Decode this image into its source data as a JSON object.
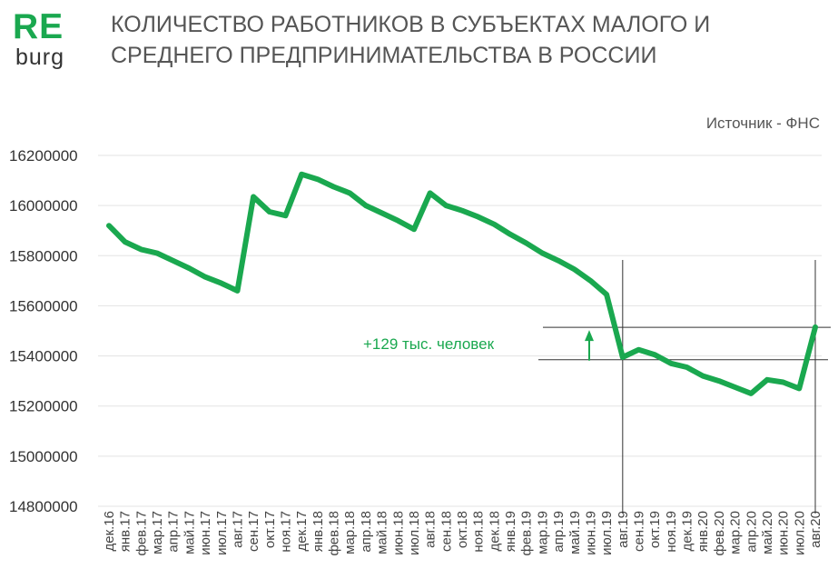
{
  "logo": {
    "line1": "RE",
    "line2": "burg"
  },
  "title": "КОЛИЧЕСТВО РАБОТНИКОВ В СУБЪЕКТАХ МАЛОГО И СРЕДНЕГО ПРЕДПРИНИМАТЕЛЬСТВА В РОССИИ",
  "source": "Источник - ФНС",
  "colors": {
    "line": "#1aa84f",
    "guide": "#333333",
    "grid": "#e3e3e3"
  },
  "annotation": {
    "text": "+129 тыс. человек",
    "from_value": 15385000,
    "to_value": 15514000
  },
  "chart_data": {
    "type": "line",
    "title": "КОЛИЧЕСТВО РАБОТНИКОВ В СУБЪЕКТАХ МАЛОГО И СРЕДНЕГО ПРЕДПРИНИМАТЕЛЬСТВА В РОССИИ",
    "xlabel": "",
    "ylabel": "",
    "ylim": [
      14800000,
      16200000
    ],
    "yticks": [
      "16200000",
      "16000000",
      "15800000",
      "15600000",
      "15400000",
      "15200000",
      "15000000",
      "14800000"
    ],
    "grid": "horizontal",
    "categories": [
      "дек.16",
      "янв.17",
      "фев.17",
      "мар.17",
      "апр.17",
      "май.17",
      "июн.17",
      "июл.17",
      "авг.17",
      "сен.17",
      "окт.17",
      "ноя.17",
      "дек.17",
      "янв.18",
      "фев.18",
      "мар.18",
      "апр.18",
      "май.18",
      "июн.18",
      "июл.18",
      "авг.18",
      "сен.18",
      "окт.18",
      "ноя.18",
      "дек.18",
      "янв.19",
      "фев.19",
      "мар.19",
      "апр.19",
      "май.19",
      "июн.19",
      "июл.19",
      "авг.19",
      "сен.19",
      "окт.19",
      "ноя.19",
      "дек.19",
      "янв.20",
      "фев.20",
      "мар.20",
      "апр.20",
      "май.20",
      "июн.20",
      "июл.20",
      "авг.20"
    ],
    "series": [
      {
        "values": [
          15920000,
          15855000,
          15825000,
          15810000,
          15780000,
          15750000,
          15715000,
          15690000,
          15660000,
          16035000,
          15975000,
          15960000,
          16125000,
          16105000,
          16075000,
          16050000,
          16000000,
          15970000,
          15940000,
          15905000,
          16050000,
          16000000,
          15980000,
          15955000,
          15925000,
          15885000,
          15850000,
          15810000,
          15780000,
          15745000,
          15700000,
          15645000,
          15395000,
          15425000,
          15405000,
          15370000,
          15355000,
          15320000,
          15300000,
          15275000,
          15250000,
          15305000,
          15295000,
          15270000,
          15515000
        ]
      }
    ]
  }
}
